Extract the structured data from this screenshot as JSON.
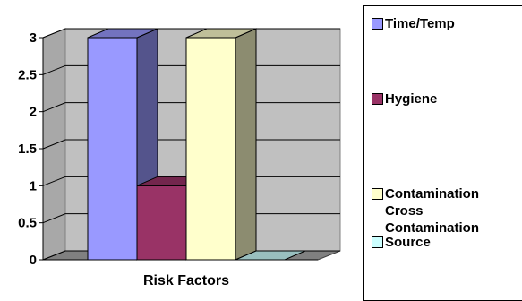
{
  "chart_data": {
    "type": "bar",
    "three_d": true,
    "categories": [
      "Risk Factors"
    ],
    "xlabel": "Risk Factors",
    "ylim": [
      0,
      3
    ],
    "yticks": [
      "3",
      "2.5",
      "2",
      "1.5",
      "1",
      "0.5",
      "0"
    ],
    "grid": true,
    "legend_position": "right",
    "series": [
      {
        "name": "Time/Temp",
        "values": [
          3
        ],
        "color": "#9999FF"
      },
      {
        "name": "Hygiene",
        "values": [
          1
        ],
        "color": "#993366"
      },
      {
        "name": "Contamination\nCross\nContamination",
        "values": [
          3
        ],
        "color": "#FFFFCC"
      },
      {
        "name": "Source",
        "values": [
          0
        ],
        "color": "#CCFFFF"
      }
    ],
    "wall_color": "#C0C0C0"
  }
}
